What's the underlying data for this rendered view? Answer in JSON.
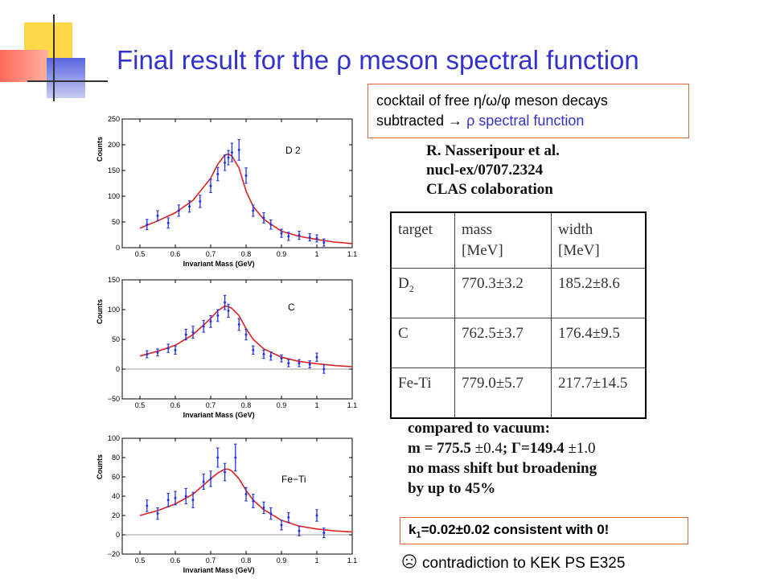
{
  "title": "Final result for the ρ meson spectral function",
  "cocktail": {
    "line1": "cocktail of free η/ω/φ meson decays",
    "line2_prefix": "subtracted → ",
    "line2_highlight": "ρ spectral function"
  },
  "reference": [
    "R. Nasseripour et al.",
    "nucl-ex/0707.2324",
    "CLAS colaboration"
  ],
  "table": {
    "headers": [
      "target",
      "mass\n[MeV]",
      "width\n[MeV]"
    ],
    "rows": [
      {
        "target": "D",
        "sub": "2",
        "mass": "770.3±3.2",
        "width": "185.2±8.6"
      },
      {
        "target": "C",
        "sub": "",
        "mass": "762.5±3.7",
        "width": "176.4±9.5"
      },
      {
        "target": "Fe-Ti",
        "sub": "",
        "mass": "779.0±5.7",
        "width": "217.7±14.5"
      }
    ]
  },
  "vacuum": {
    "line1": "compared to vacuum:",
    "line2_a": "m = 775.5 ",
    "line2_b": "±0.4",
    "line2_c": "; Γ=149.4 ",
    "line2_d": "±1.0",
    "line3": "no mass shift but broadening",
    "line4": "by up to 45%"
  },
  "k1": {
    "k": "k",
    "sub": "1",
    "rest": "=0.02±0.02 consistent with 0!"
  },
  "contradiction": {
    "icon": "sad-face-icon",
    "text": "contradiction to KEK PS E325"
  },
  "colors": {
    "title": "#3333cc",
    "box_border": "#e06040",
    "points": "#2233dd",
    "fit": "#dd2222"
  },
  "chart_data": [
    {
      "type": "scatter",
      "label": "D 2",
      "xlabel": "Invariant Mass (GeV)",
      "ylabel": "Counts",
      "xlim": [
        0.45,
        1.1
      ],
      "ylim": [
        0,
        250
      ],
      "xticks": [
        0.5,
        0.6,
        0.7,
        0.8,
        0.9,
        1,
        1.1
      ],
      "yticks": [
        0,
        50,
        100,
        150,
        200,
        250
      ],
      "zero_line": false,
      "points": [
        {
          "x": 0.52,
          "y": 45,
          "e": 10
        },
        {
          "x": 0.55,
          "y": 62,
          "e": 10
        },
        {
          "x": 0.58,
          "y": 48,
          "e": 10
        },
        {
          "x": 0.61,
          "y": 72,
          "e": 11
        },
        {
          "x": 0.64,
          "y": 80,
          "e": 11
        },
        {
          "x": 0.67,
          "y": 90,
          "e": 12
        },
        {
          "x": 0.7,
          "y": 120,
          "e": 13
        },
        {
          "x": 0.72,
          "y": 143,
          "e": 13
        },
        {
          "x": 0.74,
          "y": 165,
          "e": 15
        },
        {
          "x": 0.75,
          "y": 175,
          "e": 14
        },
        {
          "x": 0.76,
          "y": 185,
          "e": 18
        },
        {
          "x": 0.78,
          "y": 190,
          "e": 20
        },
        {
          "x": 0.8,
          "y": 140,
          "e": 15
        },
        {
          "x": 0.82,
          "y": 72,
          "e": 11
        },
        {
          "x": 0.85,
          "y": 58,
          "e": 10
        },
        {
          "x": 0.87,
          "y": 45,
          "e": 9
        },
        {
          "x": 0.9,
          "y": 28,
          "e": 8
        },
        {
          "x": 0.92,
          "y": 22,
          "e": 8
        },
        {
          "x": 0.95,
          "y": 24,
          "e": 8
        },
        {
          "x": 0.98,
          "y": 20,
          "e": 7
        },
        {
          "x": 1.0,
          "y": 18,
          "e": 7
        },
        {
          "x": 1.02,
          "y": 10,
          "e": 7
        }
      ],
      "fit": [
        [
          0.5,
          38
        ],
        [
          0.55,
          52
        ],
        [
          0.6,
          68
        ],
        [
          0.65,
          92
        ],
        [
          0.7,
          135
        ],
        [
          0.72,
          162
        ],
        [
          0.74,
          180
        ],
        [
          0.75,
          182
        ],
        [
          0.76,
          178
        ],
        [
          0.78,
          155
        ],
        [
          0.8,
          110
        ],
        [
          0.82,
          80
        ],
        [
          0.85,
          55
        ],
        [
          0.9,
          32
        ],
        [
          0.95,
          22
        ],
        [
          1.0,
          16
        ],
        [
          1.05,
          11
        ],
        [
          1.1,
          8
        ]
      ]
    },
    {
      "type": "scatter",
      "label": "C",
      "xlabel": "Invariant Mass (GeV)",
      "ylabel": "Counts",
      "xlim": [
        0.45,
        1.1
      ],
      "ylim": [
        -50,
        150
      ],
      "xticks": [
        0.5,
        0.6,
        0.7,
        0.8,
        0.9,
        1,
        1.1
      ],
      "yticks": [
        -50,
        0,
        50,
        100,
        150
      ],
      "zero_line": true,
      "points": [
        {
          "x": 0.52,
          "y": 25,
          "e": 6
        },
        {
          "x": 0.55,
          "y": 28,
          "e": 6
        },
        {
          "x": 0.58,
          "y": 35,
          "e": 7
        },
        {
          "x": 0.6,
          "y": 32,
          "e": 7
        },
        {
          "x": 0.63,
          "y": 58,
          "e": 9
        },
        {
          "x": 0.65,
          "y": 62,
          "e": 10
        },
        {
          "x": 0.68,
          "y": 72,
          "e": 10
        },
        {
          "x": 0.7,
          "y": 80,
          "e": 10
        },
        {
          "x": 0.72,
          "y": 90,
          "e": 10
        },
        {
          "x": 0.74,
          "y": 112,
          "e": 12
        },
        {
          "x": 0.75,
          "y": 98,
          "e": 11
        },
        {
          "x": 0.78,
          "y": 75,
          "e": 10
        },
        {
          "x": 0.8,
          "y": 58,
          "e": 9
        },
        {
          "x": 0.82,
          "y": 32,
          "e": 7
        },
        {
          "x": 0.85,
          "y": 25,
          "e": 7
        },
        {
          "x": 0.87,
          "y": 22,
          "e": 7
        },
        {
          "x": 0.9,
          "y": 18,
          "e": 6
        },
        {
          "x": 0.92,
          "y": 10,
          "e": 6
        },
        {
          "x": 0.95,
          "y": 10,
          "e": 6
        },
        {
          "x": 0.98,
          "y": 8,
          "e": 6
        },
        {
          "x": 1.0,
          "y": 20,
          "e": 7
        },
        {
          "x": 1.02,
          "y": 0,
          "e": 7
        }
      ],
      "fit": [
        [
          0.5,
          22
        ],
        [
          0.55,
          30
        ],
        [
          0.6,
          40
        ],
        [
          0.65,
          58
        ],
        [
          0.7,
          85
        ],
        [
          0.72,
          98
        ],
        [
          0.74,
          106
        ],
        [
          0.75,
          105
        ],
        [
          0.76,
          102
        ],
        [
          0.78,
          90
        ],
        [
          0.8,
          68
        ],
        [
          0.82,
          50
        ],
        [
          0.85,
          34
        ],
        [
          0.9,
          20
        ],
        [
          0.95,
          13
        ],
        [
          1.0,
          9
        ],
        [
          1.05,
          6
        ],
        [
          1.1,
          4
        ]
      ]
    },
    {
      "type": "scatter",
      "label": "Fe−Ti",
      "xlabel": "Invariant Mass (GeV)",
      "ylabel": "Counts",
      "xlim": [
        0.45,
        1.1
      ],
      "ylim": [
        -20,
        100
      ],
      "xticks": [
        0.5,
        0.6,
        0.7,
        0.8,
        0.9,
        1,
        1.1
      ],
      "yticks": [
        -20,
        0,
        20,
        40,
        60,
        80,
        100
      ],
      "zero_line": true,
      "points": [
        {
          "x": 0.52,
          "y": 30,
          "e": 6
        },
        {
          "x": 0.55,
          "y": 22,
          "e": 6
        },
        {
          "x": 0.58,
          "y": 36,
          "e": 7
        },
        {
          "x": 0.6,
          "y": 38,
          "e": 7
        },
        {
          "x": 0.63,
          "y": 40,
          "e": 8
        },
        {
          "x": 0.65,
          "y": 36,
          "e": 8
        },
        {
          "x": 0.68,
          "y": 55,
          "e": 8
        },
        {
          "x": 0.7,
          "y": 58,
          "e": 8
        },
        {
          "x": 0.72,
          "y": 80,
          "e": 10
        },
        {
          "x": 0.74,
          "y": 65,
          "e": 9
        },
        {
          "x": 0.77,
          "y": 80,
          "e": 14
        },
        {
          "x": 0.8,
          "y": 42,
          "e": 7
        },
        {
          "x": 0.82,
          "y": 35,
          "e": 7
        },
        {
          "x": 0.85,
          "y": 28,
          "e": 6
        },
        {
          "x": 0.87,
          "y": 22,
          "e": 6
        },
        {
          "x": 0.9,
          "y": 10,
          "e": 5
        },
        {
          "x": 0.92,
          "y": 18,
          "e": 5
        },
        {
          "x": 0.95,
          "y": 4,
          "e": 5
        },
        {
          "x": 1.0,
          "y": 20,
          "e": 6
        },
        {
          "x": 1.02,
          "y": 2,
          "e": 5
        }
      ],
      "fit": [
        [
          0.5,
          20
        ],
        [
          0.55,
          25
        ],
        [
          0.6,
          32
        ],
        [
          0.65,
          42
        ],
        [
          0.7,
          58
        ],
        [
          0.72,
          64
        ],
        [
          0.74,
          68
        ],
        [
          0.75,
          68
        ],
        [
          0.76,
          66
        ],
        [
          0.78,
          58
        ],
        [
          0.8,
          46
        ],
        [
          0.82,
          36
        ],
        [
          0.85,
          26
        ],
        [
          0.9,
          15
        ],
        [
          0.95,
          9
        ],
        [
          1.0,
          6
        ],
        [
          1.05,
          4
        ],
        [
          1.1,
          3
        ]
      ]
    }
  ]
}
